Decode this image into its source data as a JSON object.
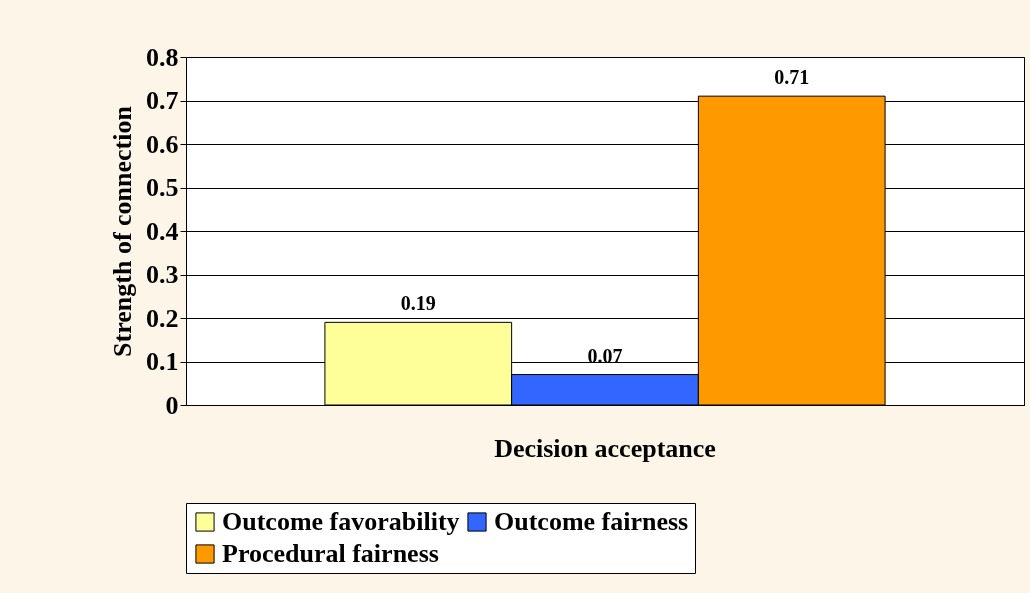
{
  "chart_data": {
    "type": "bar",
    "ylabel": "Strength of connection",
    "categories": [
      "Decision acceptance"
    ],
    "series": [
      {
        "name": "Outcome favorability",
        "color": "#ffff99",
        "values": [
          0.19
        ]
      },
      {
        "name": "Outcome fairness",
        "color": "#3366ff",
        "values": [
          0.07
        ]
      },
      {
        "name": "Procedural fairness",
        "color": "#ff9900",
        "values": [
          0.71
        ]
      }
    ],
    "ylim": [
      0,
      0.8
    ],
    "yticks": [
      0,
      0.1,
      0.2,
      0.3,
      0.4,
      0.5,
      0.6,
      0.7,
      0.8
    ],
    "grid": "y",
    "legend": "bottom",
    "data_labels": true
  }
}
